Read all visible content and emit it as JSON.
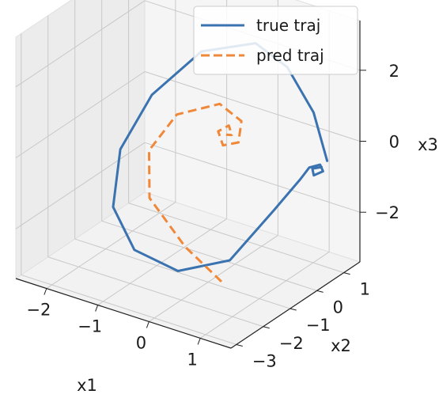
{
  "chart_data": {
    "type": "line",
    "projection": "3d",
    "title": "",
    "axis_labels": {
      "x": "x1",
      "y": "x2",
      "z": "x3"
    },
    "ticks": {
      "x": [
        "−2",
        "−1",
        "0",
        "1"
      ],
      "y": [
        "−3",
        "−2",
        "−1",
        "0",
        "1"
      ],
      "z": [
        "−2",
        "0",
        "2"
      ]
    },
    "limits": {
      "x": [
        -2.6,
        1.6
      ],
      "y": [
        -3.2,
        1.6
      ],
      "z": [
        -3.4,
        3.4
      ]
    },
    "grid": true,
    "legend": {
      "position": "top-right"
    },
    "series": [
      {
        "name": "true traj",
        "color": "#3a73b0",
        "style": "solid",
        "points": [
          [
            1.8,
            0.0,
            0.35
          ],
          [
            1.3,
            0.45,
            1.25
          ],
          [
            0.55,
            0.9,
            1.95
          ],
          [
            -0.2,
            1.15,
            2.15
          ],
          [
            -1.1,
            0.85,
            1.65
          ],
          [
            -1.7,
            0.15,
            0.5
          ],
          [
            -1.95,
            -0.55,
            -0.8
          ],
          [
            -1.75,
            -1.2,
            -2.0
          ],
          [
            -1.15,
            -1.55,
            -2.75
          ],
          [
            -0.3,
            -1.55,
            -2.95
          ],
          [
            0.45,
            -1.05,
            -2.55
          ],
          [
            0.95,
            -0.35,
            -1.25
          ],
          [
            1.25,
            0.05,
            -0.45
          ],
          [
            1.45,
            0.0,
            0.0
          ],
          [
            1.62,
            0.08,
            0.12
          ],
          [
            1.72,
            0.0,
            0.02
          ],
          [
            1.58,
            -0.08,
            -0.12
          ],
          [
            1.5,
            0.02,
            -0.02
          ],
          [
            1.66,
            0.06,
            0.08
          ]
        ]
      },
      {
        "name": "pred traj",
        "color": "#f0883a",
        "style": "dashed",
        "points": [
          [
            0.55,
            -1.55,
            -2.85
          ],
          [
            0.05,
            -1.95,
            -1.9
          ],
          [
            -0.75,
            -1.75,
            -1.0
          ],
          [
            -1.1,
            -1.1,
            -0.15
          ],
          [
            -0.95,
            -0.35,
            0.55
          ],
          [
            -0.35,
            0.1,
            0.9
          ],
          [
            0.1,
            0.05,
            0.65
          ],
          [
            0.2,
            -0.25,
            0.25
          ],
          [
            -0.05,
            -0.35,
            0.1
          ],
          [
            -0.25,
            -0.15,
            0.3
          ],
          [
            -0.12,
            0.0,
            0.45
          ],
          [
            0.0,
            -0.12,
            0.3
          ],
          [
            -0.08,
            -0.18,
            0.3
          ]
        ]
      }
    ]
  }
}
